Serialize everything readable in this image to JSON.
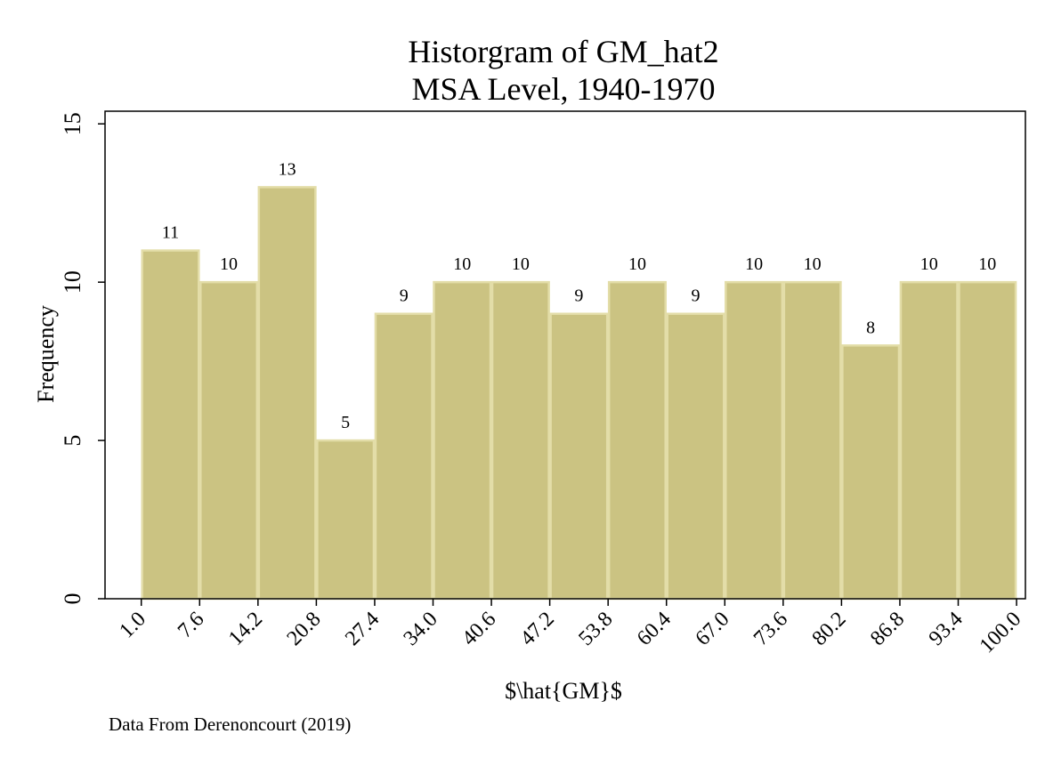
{
  "chart_data": {
    "type": "bar",
    "title": "Historgram of GM_hat2",
    "subtitle": "MSA Level, 1940-1970",
    "xlabel": "$\\hat{GM}$",
    "ylabel": "Frequency",
    "note": "Data From Derenoncourt (2019)",
    "bin_edges": [
      1.0,
      7.6,
      14.2,
      20.8,
      27.4,
      34.0,
      40.6,
      47.2,
      53.8,
      60.4,
      67.0,
      73.6,
      80.2,
      86.8,
      93.4,
      100.0
    ],
    "x_tick_labels": [
      "1.0",
      "7.6",
      "14.2",
      "20.8",
      "27.4",
      "34.0",
      "40.6",
      "47.2",
      "53.8",
      "60.4",
      "67.0",
      "73.6",
      "80.2",
      "86.8",
      "93.4",
      "100.0"
    ],
    "values": [
      11,
      10,
      13,
      5,
      9,
      10,
      10,
      9,
      10,
      9,
      10,
      10,
      8,
      10,
      10
    ],
    "y_ticks": [
      0,
      5,
      10,
      15
    ],
    "ylim": [
      0,
      15.4
    ],
    "xlim": [
      -3.1,
      101.0
    ],
    "grid": false,
    "legend": "none",
    "colors": {
      "bar_fill": "#cbc382",
      "bar_edge": "#e3dda8",
      "axis": "#000000",
      "background": "#ffffff"
    }
  }
}
